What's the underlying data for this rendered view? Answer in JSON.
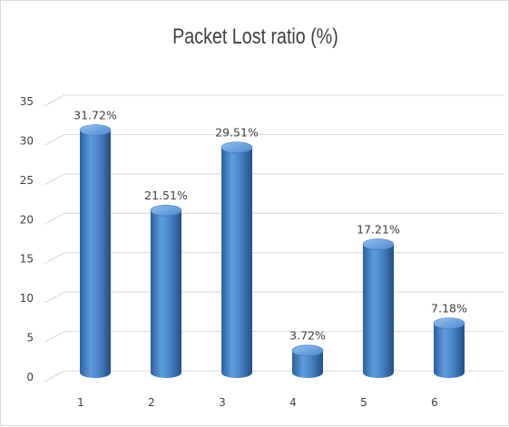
{
  "chart_data": {
    "type": "bar",
    "title": "Packet Lost ratio (%)",
    "categories": [
      "1",
      "2",
      "3",
      "4",
      "5",
      "6"
    ],
    "values": [
      31.72,
      21.51,
      29.51,
      3.72,
      17.21,
      7.18
    ],
    "data_labels": [
      "31.72%",
      "21.51%",
      "29.51%",
      "3.72%",
      "17.21%",
      "7.18%"
    ],
    "y_ticks": [
      "0",
      "5",
      "10",
      "15",
      "20",
      "25",
      "30",
      "35"
    ],
    "ylim": [
      0,
      35
    ],
    "xlabel": "",
    "ylabel": "",
    "grid": true,
    "legend": "none",
    "bar_color": "#4a85c8",
    "style": "3d-cylinder"
  }
}
